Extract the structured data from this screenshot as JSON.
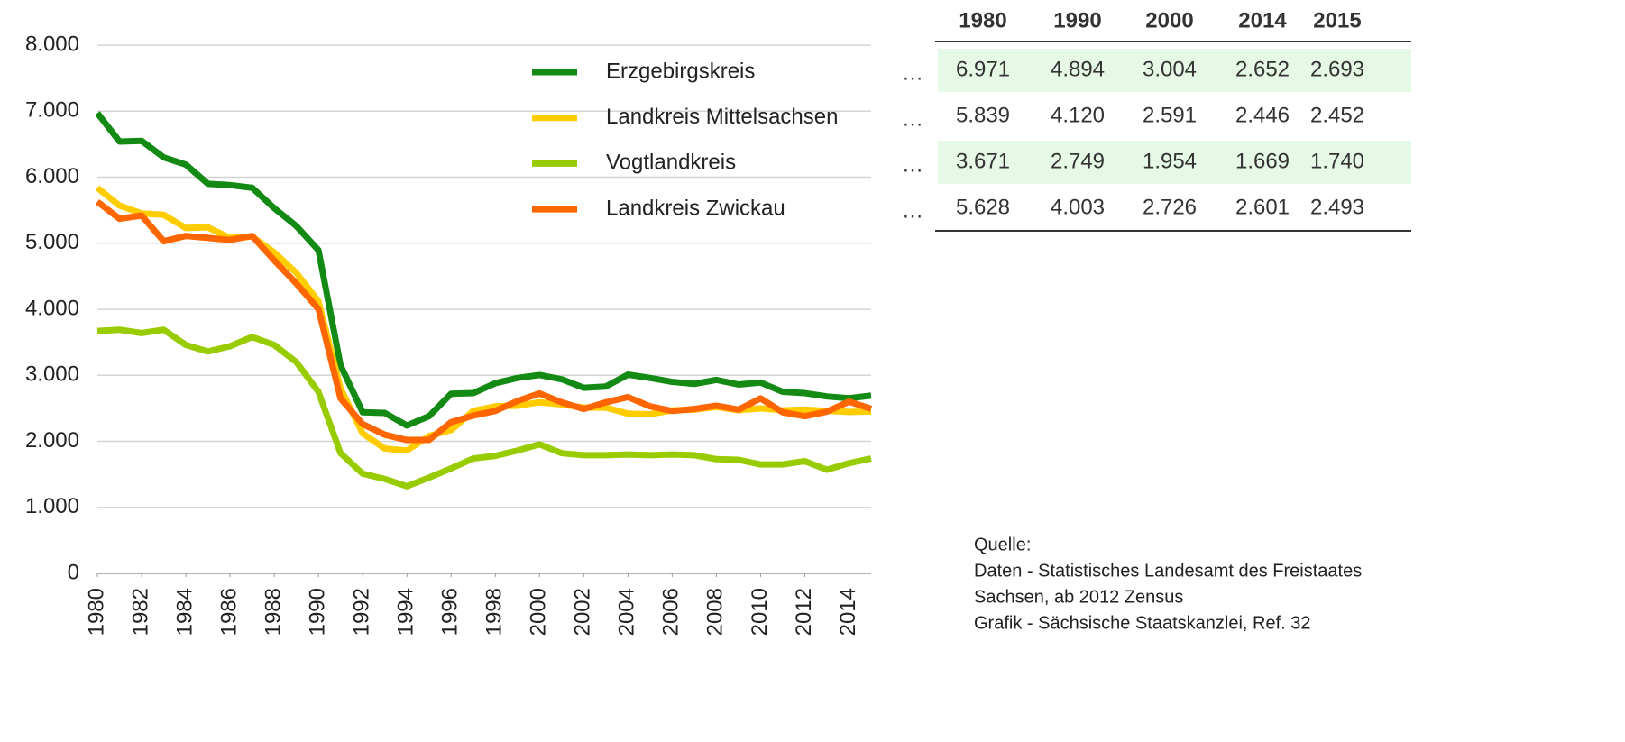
{
  "chart_data": {
    "type": "line",
    "legend": "upper right",
    "grid": true,
    "x": [
      1980,
      1981,
      1982,
      1983,
      1984,
      1985,
      1986,
      1987,
      1988,
      1989,
      1990,
      1991,
      1992,
      1993,
      1994,
      1995,
      1996,
      1997,
      1998,
      1999,
      2000,
      2001,
      2002,
      2003,
      2004,
      2005,
      2006,
      2007,
      2008,
      2009,
      2010,
      2011,
      2012,
      2013,
      2014,
      2015
    ],
    "xlim": [
      1980,
      2015
    ],
    "xticks": [
      1980,
      1982,
      1984,
      1986,
      1988,
      1990,
      1992,
      1994,
      1996,
      1998,
      2000,
      2002,
      2004,
      2006,
      2008,
      2010,
      2012,
      2014
    ],
    "ylim": [
      0,
      8000
    ],
    "yticks": [
      0,
      {
        "value": 1000,
        "label": "1.000"
      },
      {
        "value": 2000,
        "label": "2.000"
      },
      {
        "value": 3000,
        "label": "3.000"
      },
      {
        "value": 4000,
        "label": "4.000"
      },
      {
        "value": 5000,
        "label": "5.000"
      },
      {
        "value": 6000,
        "label": "6.000"
      },
      {
        "value": 7000,
        "label": "7.000"
      },
      {
        "value": 8000,
        "label": "8.000"
      }
    ],
    "series": [
      {
        "name": "Erzgebirgskreis",
        "color": "#138a13",
        "values": [
          6971,
          6540,
          6550,
          6300,
          6190,
          5900,
          5880,
          5840,
          5530,
          5260,
          4894,
          3150,
          2440,
          2430,
          2240,
          2380,
          2720,
          2730,
          2880,
          2960,
          3004,
          2940,
          2810,
          2830,
          3010,
          2960,
          2900,
          2870,
          2930,
          2860,
          2890,
          2750,
          2730,
          2680,
          2652,
          2693
        ]
      },
      {
        "name": "Landkreis Mittelsachsen",
        "color": "#ffcc00",
        "values": [
          5839,
          5570,
          5450,
          5430,
          5230,
          5240,
          5080,
          5100,
          4860,
          4550,
          4120,
          2800,
          2120,
          1890,
          1860,
          2080,
          2170,
          2460,
          2530,
          2540,
          2591,
          2560,
          2510,
          2510,
          2420,
          2410,
          2470,
          2480,
          2520,
          2470,
          2500,
          2470,
          2480,
          2460,
          2446,
          2452
        ]
      },
      {
        "name": "Vogtlandkreis",
        "color": "#99cc00",
        "values": [
          3671,
          3690,
          3640,
          3690,
          3460,
          3360,
          3440,
          3580,
          3460,
          3200,
          2749,
          1820,
          1510,
          1430,
          1320,
          1450,
          1590,
          1740,
          1780,
          1860,
          1954,
          1820,
          1790,
          1790,
          1800,
          1790,
          1800,
          1790,
          1730,
          1720,
          1650,
          1650,
          1700,
          1570,
          1669,
          1740
        ]
      },
      {
        "name": "Landkreis Zwickau",
        "color": "#ff6600",
        "values": [
          5628,
          5370,
          5420,
          5030,
          5110,
          5080,
          5050,
          5110,
          4740,
          4390,
          4003,
          2650,
          2260,
          2100,
          2020,
          2020,
          2290,
          2390,
          2460,
          2610,
          2726,
          2590,
          2490,
          2590,
          2670,
          2530,
          2460,
          2490,
          2540,
          2480,
          2650,
          2440,
          2380,
          2450,
          2601,
          2493
        ]
      }
    ]
  },
  "table": {
    "header": [
      "1980",
      "1990",
      "2000",
      "2014",
      "2015"
    ],
    "rows": [
      [
        "…",
        "6.971",
        "4.894",
        "3.004",
        "2.652",
        "2.693"
      ],
      [
        "…",
        "5.839",
        "4.120",
        "2.591",
        "2.446",
        "2.452"
      ],
      [
        "…",
        "3.671",
        "2.749",
        "1.954",
        "1.669",
        "1.740"
      ],
      [
        "…",
        "5.628",
        "4.003",
        "2.726",
        "2.601",
        "2.493"
      ]
    ]
  },
  "source": [
    "Quelle:",
    "Daten - Statistisches Landesamt des Freistaates",
    "Sachsen, ab 2012 Zensus",
    "Grafik - Sächsische Staatskanzlei, Ref. 32"
  ]
}
